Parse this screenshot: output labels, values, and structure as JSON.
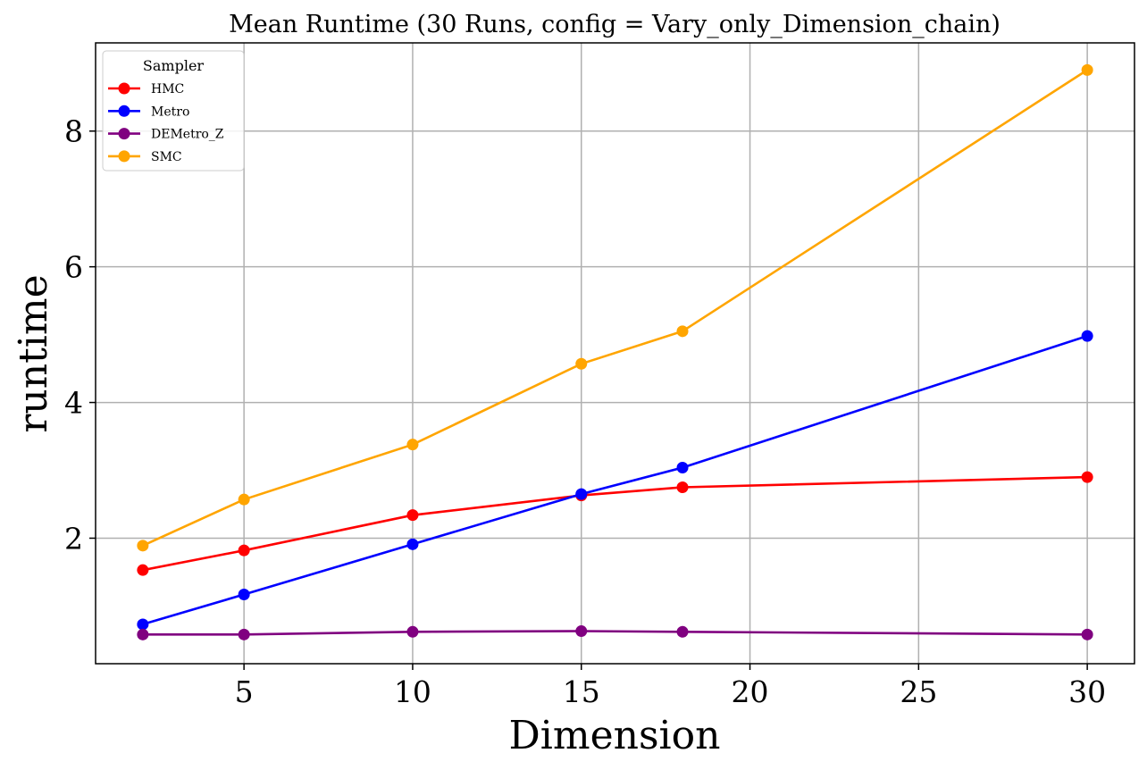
{
  "chart_data": {
    "type": "line",
    "title": "Mean Runtime (30 Runs, config = Vary_only_Dimension_chain)",
    "xlabel": "Dimension",
    "ylabel": "runtime",
    "x": [
      2,
      5,
      10,
      15,
      18,
      30
    ],
    "xlim": [
      0.6,
      31.4
    ],
    "ylim": [
      0.15,
      9.3
    ],
    "xticks": [
      5,
      10,
      15,
      20,
      25,
      30
    ],
    "yticks": [
      2,
      4,
      6,
      8
    ],
    "grid": true,
    "legend": {
      "title": "Sampler",
      "placement": "upper-left"
    },
    "series": [
      {
        "name": "HMC",
        "color": "#ff0000",
        "values": [
          1.53,
          1.82,
          2.34,
          2.63,
          2.75,
          2.9
        ]
      },
      {
        "name": "Metro",
        "color": "#0000ff",
        "values": [
          0.73,
          1.17,
          1.91,
          2.65,
          3.04,
          4.98
        ]
      },
      {
        "name": "DEMetro_Z",
        "color": "#800080",
        "values": [
          0.58,
          0.58,
          0.62,
          0.63,
          0.62,
          0.58
        ]
      },
      {
        "name": "SMC",
        "color": "#ffa500",
        "values": [
          1.89,
          2.57,
          3.38,
          4.57,
          5.05,
          8.9
        ]
      }
    ]
  }
}
